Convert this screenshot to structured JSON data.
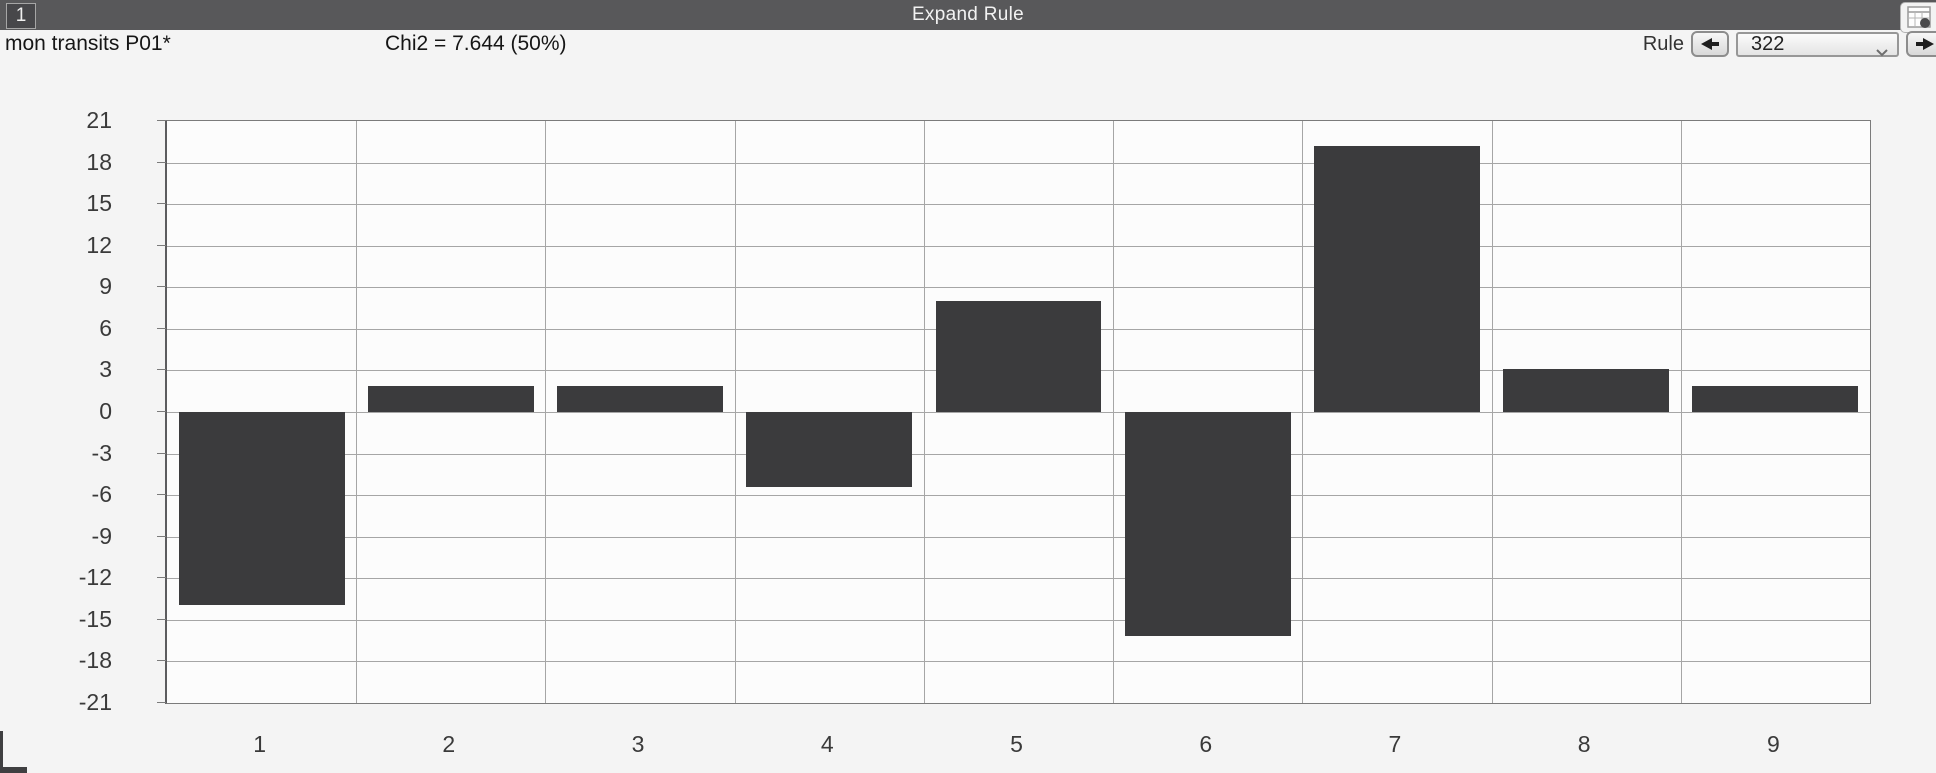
{
  "window": {
    "title": "Expand Rule",
    "id_button": "1"
  },
  "toolbar": {
    "dataset_label": "mon transits P01*",
    "chi2_label": "Chi2 = 7.644 (50%)",
    "rule_label": "Rule",
    "rule_value": "322",
    "icons": {
      "prev": "prev-arrow-icon",
      "next": "next-arrow-icon",
      "chevron": "chevron-down-icon",
      "corner": "mini-window-grid-icon"
    }
  },
  "colors": {
    "titlebar": "#58585a",
    "bar": "#3b3b3d",
    "grid": "#a6a6a6",
    "axis": "#7b7b7b",
    "plot_bg": "#fcfcfc",
    "page_bg": "#f4f4f4"
  },
  "chart_data": {
    "type": "bar",
    "categories": [
      "1",
      "2",
      "3",
      "4",
      "5",
      "6",
      "7",
      "8",
      "9"
    ],
    "values": [
      -13.9,
      1.9,
      1.9,
      -5.4,
      8.0,
      -16.2,
      19.2,
      3.1,
      1.9
    ],
    "title": "",
    "xlabel": "",
    "ylabel": "",
    "ylim": [
      -21,
      21
    ],
    "ytick_step": 3,
    "grid": true,
    "legend": "none",
    "bar_color": "#3b3b3d"
  }
}
